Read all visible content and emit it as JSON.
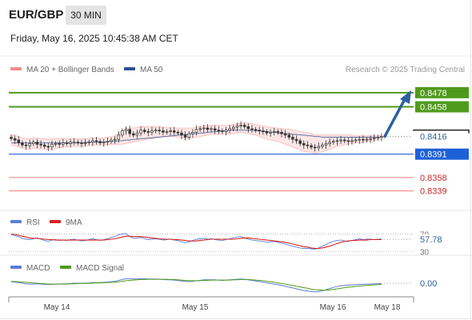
{
  "header": {
    "symbol": "EUR/GBP",
    "timeframe": "30 MIN",
    "datetime": "Friday, May 16, 2025 10:45:38 AM CET"
  },
  "colors": {
    "bollinger": "#f28c8c",
    "ma50": "#2f4f8f",
    "target": "#4f9a1c",
    "pivot": "#1e60d8",
    "support": "#f07a7a",
    "arrow": "#2f5fa0",
    "rsi": "#5b7fd6",
    "rsi_ma": "#d62222",
    "macd": "#5b7fd6",
    "macd_signal": "#4f9a1c",
    "candle_up": "#ffffff",
    "candle_down": "#333333"
  },
  "chart_data": [
    {
      "type": "candlestick",
      "title": "EUR/GBP",
      "legend": [
        {
          "name": "MA 20 + Bollinger Bands",
          "color_key": "bollinger"
        },
        {
          "name": "MA 50",
          "color_key": "ma50"
        }
      ],
      "credit": "Research © 2025 Trading Central",
      "ylim": [
        0.8325,
        0.8488
      ],
      "x_tick_labels": [
        "May 14",
        "May 15",
        "May 16",
        "May 18"
      ],
      "price_now": "0.8416",
      "levels": [
        {
          "value": 0.8478,
          "label": "0.8478",
          "kind": "target",
          "style": "box"
        },
        {
          "value": 0.8458,
          "label": "0.8458",
          "kind": "target",
          "style": "box"
        },
        {
          "value": 0.8391,
          "label": "0.8391",
          "kind": "pivot",
          "style": "box"
        },
        {
          "value": 0.8358,
          "label": "0.8358",
          "kind": "support",
          "style": "text"
        },
        {
          "value": 0.8339,
          "label": "0.8339",
          "kind": "support",
          "style": "text"
        }
      ],
      "arrow": {
        "from": 0.8416,
        "to": 0.8478
      },
      "close": [
        0.8413,
        0.8411,
        0.8407,
        0.8404,
        0.8403,
        0.8406,
        0.8408,
        0.8405,
        0.8404,
        0.8402,
        0.8401,
        0.8405,
        0.8406,
        0.8405,
        0.8407,
        0.8406,
        0.8408,
        0.8408,
        0.8407,
        0.8406,
        0.8407,
        0.8408,
        0.841,
        0.8409,
        0.8407,
        0.8408,
        0.8409,
        0.8411,
        0.8412,
        0.8418,
        0.8424,
        0.8426,
        0.842,
        0.8418,
        0.8421,
        0.8425,
        0.8423,
        0.8422,
        0.8424,
        0.8425,
        0.8424,
        0.8422,
        0.8423,
        0.8424,
        0.8422,
        0.8421,
        0.8418,
        0.8415,
        0.842,
        0.8422,
        0.8426,
        0.8427,
        0.8428,
        0.8426,
        0.8427,
        0.8425,
        0.8424,
        0.8423,
        0.8425,
        0.8427,
        0.8429,
        0.8431,
        0.8432,
        0.843,
        0.8427,
        0.8426,
        0.8425,
        0.8424,
        0.8423,
        0.8421,
        0.8422,
        0.8423,
        0.8422,
        0.842,
        0.8418,
        0.8415,
        0.8412,
        0.841,
        0.8406,
        0.8404,
        0.8403,
        0.8401,
        0.84,
        0.8402,
        0.8404,
        0.8406,
        0.8408,
        0.8409,
        0.841,
        0.8411,
        0.841,
        0.8409,
        0.841,
        0.8411,
        0.8412,
        0.8411,
        0.8412,
        0.8413,
        0.8414,
        0.8415,
        0.8416
      ],
      "upper_band": [
        0.8419,
        0.8418,
        0.8416,
        0.8414,
        0.8413,
        0.8413,
        0.8414,
        0.8414,
        0.8413,
        0.8413,
        0.8412,
        0.8413,
        0.8413,
        0.8413,
        0.8413,
        0.8413,
        0.8413,
        0.8413,
        0.8413,
        0.8413,
        0.8413,
        0.8413,
        0.8414,
        0.8414,
        0.8414,
        0.8414,
        0.8415,
        0.8416,
        0.8417,
        0.842,
        0.8424,
        0.8427,
        0.8428,
        0.8428,
        0.8429,
        0.843,
        0.843,
        0.843,
        0.843,
        0.843,
        0.843,
        0.8429,
        0.8429,
        0.8429,
        0.8428,
        0.8428,
        0.8428,
        0.8428,
        0.8428,
        0.8428,
        0.8429,
        0.843,
        0.8431,
        0.8431,
        0.8432,
        0.8432,
        0.8432,
        0.8432,
        0.8432,
        0.8432,
        0.8433,
        0.8434,
        0.8435,
        0.8435,
        0.8435,
        0.8434,
        0.8433,
        0.8432,
        0.8431,
        0.843,
        0.8429,
        0.8428,
        0.8428,
        0.8427,
        0.8427,
        0.8426,
        0.8425,
        0.8424,
        0.8423,
        0.8422,
        0.8421,
        0.842,
        0.8419,
        0.8418,
        0.8418,
        0.8418,
        0.8418,
        0.8418,
        0.8418,
        0.8418,
        0.8418,
        0.8418,
        0.8418,
        0.8417,
        0.8417,
        0.8417,
        0.8417,
        0.8417,
        0.8417,
        0.8417,
        0.8417
      ],
      "lower_band": [
        0.8404,
        0.8403,
        0.8401,
        0.8399,
        0.8398,
        0.8398,
        0.8399,
        0.8399,
        0.8398,
        0.8398,
        0.8397,
        0.8398,
        0.8399,
        0.84,
        0.8401,
        0.8401,
        0.8401,
        0.8402,
        0.8402,
        0.8402,
        0.8403,
        0.8403,
        0.8404,
        0.8404,
        0.8404,
        0.8404,
        0.8404,
        0.8405,
        0.8405,
        0.8405,
        0.8405,
        0.8406,
        0.8407,
        0.8408,
        0.8409,
        0.841,
        0.8411,
        0.8412,
        0.8413,
        0.8414,
        0.8415,
        0.8415,
        0.8416,
        0.8416,
        0.8416,
        0.8415,
        0.8414,
        0.8413,
        0.8413,
        0.8414,
        0.8415,
        0.8416,
        0.8417,
        0.8418,
        0.8419,
        0.8419,
        0.8419,
        0.8419,
        0.8419,
        0.8419,
        0.842,
        0.8421,
        0.8422,
        0.8421,
        0.842,
        0.8419,
        0.8418,
        0.8416,
        0.8414,
        0.8412,
        0.8411,
        0.841,
        0.8409,
        0.8407,
        0.8405,
        0.8403,
        0.8401,
        0.8399,
        0.8397,
        0.8395,
        0.8394,
        0.8393,
        0.8392,
        0.8393,
        0.8394,
        0.8396,
        0.8398,
        0.84,
        0.8402,
        0.8403,
        0.8404,
        0.8405,
        0.8406,
        0.8407,
        0.8408,
        0.8408,
        0.8409,
        0.841,
        0.841,
        0.8411,
        0.8412
      ],
      "ma50": [
        0.8407,
        0.8407,
        0.8407,
        0.8407,
        0.8407,
        0.8407,
        0.8407,
        0.8407,
        0.8407,
        0.8407,
        0.8407,
        0.8407,
        0.8407,
        0.8407,
        0.8407,
        0.8407,
        0.8407,
        0.8407,
        0.8407,
        0.8407,
        0.8408,
        0.8408,
        0.8408,
        0.8408,
        0.8408,
        0.8408,
        0.8409,
        0.8409,
        0.8409,
        0.841,
        0.841,
        0.8411,
        0.8411,
        0.8412,
        0.8412,
        0.8413,
        0.8413,
        0.8414,
        0.8414,
        0.8415,
        0.8415,
        0.8416,
        0.8416,
        0.8417,
        0.8417,
        0.8418,
        0.8418,
        0.8419,
        0.8419,
        0.842,
        0.842,
        0.8421,
        0.8421,
        0.8422,
        0.8422,
        0.8423,
        0.8423,
        0.8424,
        0.8424,
        0.8425,
        0.8425,
        0.8425,
        0.8425,
        0.8425,
        0.8425,
        0.8425,
        0.8424,
        0.8424,
        0.8423,
        0.8423,
        0.8422,
        0.8422,
        0.8421,
        0.8421,
        0.842,
        0.842,
        0.8419,
        0.8419,
        0.8418,
        0.8418,
        0.8417,
        0.8417,
        0.8416,
        0.8416,
        0.8415,
        0.8415,
        0.8415,
        0.8415,
        0.8415,
        0.8415,
        0.8415,
        0.8415,
        0.8415,
        0.8415,
        0.8415,
        0.8415,
        0.8415,
        0.8415,
        0.8415,
        0.8415,
        0.8415
      ]
    },
    {
      "type": "line",
      "title": "RSI",
      "legend": [
        {
          "name": "RSI",
          "color_key": "rsi"
        },
        {
          "name": "9MA",
          "color_key": "rsi_ma"
        }
      ],
      "ylim": [
        25,
        80
      ],
      "levels": [
        {
          "value": 70,
          "label": "70"
        },
        {
          "value": 30,
          "label": "30"
        }
      ],
      "current_value": "57.78",
      "series": [
        {
          "name": "RSI",
          "values": [
            68,
            66,
            64,
            60,
            58,
            57,
            59,
            61,
            58,
            55,
            53,
            56,
            57,
            55,
            56,
            55,
            57,
            58,
            56,
            54,
            55,
            57,
            59,
            57,
            55,
            57,
            59,
            62,
            64,
            68,
            70,
            71,
            64,
            60,
            61,
            62,
            59,
            57,
            58,
            59,
            58,
            56,
            57,
            58,
            56,
            55,
            52,
            50,
            52,
            55,
            58,
            59,
            60,
            58,
            59,
            57,
            56,
            55,
            57,
            59,
            61,
            63,
            64,
            61,
            58,
            56,
            55,
            54,
            53,
            51,
            52,
            53,
            51,
            49,
            47,
            44,
            42,
            40,
            38,
            37,
            37,
            36,
            35,
            38,
            42,
            46,
            50,
            53,
            55,
            56,
            54,
            53,
            55,
            57,
            59,
            57,
            58,
            58,
            57,
            58,
            58
          ]
        },
        {
          "name": "9MA",
          "values": [
            70,
            69,
            67,
            65,
            63,
            61,
            60,
            60,
            59,
            58,
            57,
            57,
            56,
            56,
            56,
            56,
            56,
            56,
            56,
            56,
            56,
            56,
            56,
            56,
            56,
            56,
            57,
            58,
            59,
            61,
            63,
            65,
            65,
            64,
            64,
            64,
            63,
            62,
            61,
            60,
            59,
            58,
            58,
            58,
            57,
            57,
            56,
            55,
            54,
            54,
            54,
            55,
            56,
            57,
            58,
            58,
            58,
            58,
            58,
            58,
            58,
            59,
            60,
            61,
            61,
            60,
            59,
            58,
            57,
            56,
            55,
            54,
            53,
            52,
            51,
            49,
            47,
            45,
            43,
            41,
            40,
            38,
            37,
            37,
            38,
            40,
            42,
            45,
            48,
            51,
            53,
            54,
            55,
            55,
            56,
            56,
            56,
            57,
            57,
            57,
            57
          ]
        }
      ]
    },
    {
      "type": "line",
      "title": "MACD",
      "legend": [
        {
          "name": "MACD",
          "color_key": "macd"
        },
        {
          "name": "MACD Signal",
          "color_key": "macd_signal"
        }
      ],
      "ylim": [
        -0.0004,
        0.0004
      ],
      "current_value": "0.00",
      "series": [
        {
          "name": "MACD",
          "values": [
            5e-05,
            4e-05,
            2e-05,
            0.0,
            -2e-05,
            -3e-05,
            -3e-05,
            -2e-05,
            -3e-05,
            -4e-05,
            -5e-05,
            -4e-05,
            -3e-05,
            -3e-05,
            -2e-05,
            -2e-05,
            -1e-05,
            0.0,
            0.0,
            0.0,
            0.0,
            1e-05,
            2e-05,
            2e-05,
            2e-05,
            3e-05,
            4e-05,
            5e-05,
            7e-05,
            0.0001,
            0.00013,
            0.00016,
            0.00016,
            0.00015,
            0.00015,
            0.00016,
            0.00016,
            0.00015,
            0.00015,
            0.00015,
            0.00014,
            0.00013,
            0.00012,
            0.00012,
            0.00011,
            0.0001,
            8e-05,
            6e-05,
            6e-05,
            7e-05,
            9e-05,
            0.0001,
            0.00012,
            0.00012,
            0.00012,
            0.00012,
            0.00011,
            0.0001,
            0.00011,
            0.00012,
            0.00013,
            0.00014,
            0.00015,
            0.00014,
            0.00012,
            0.0001,
            8e-05,
            6e-05,
            4e-05,
            1e-05,
            -1e-05,
            -3e-05,
            -5e-05,
            -8e-05,
            -0.00011,
            -0.00014,
            -0.00017,
            -0.0002,
            -0.00023,
            -0.00026,
            -0.00028,
            -0.0003,
            -0.00031,
            -0.0003,
            -0.00027,
            -0.00023,
            -0.00019,
            -0.00015,
            -0.00012,
            -9e-05,
            -8e-05,
            -7e-05,
            -6e-05,
            -5e-05,
            -4e-05,
            -4e-05,
            -3e-05,
            -3e-05,
            -2e-05,
            -2e-05,
            -1e-05
          ]
        },
        {
          "name": "MACD Signal",
          "values": [
            6e-05,
            6e-05,
            5e-05,
            4e-05,
            3e-05,
            2e-05,
            1e-05,
            0.0,
            -1e-05,
            -2e-05,
            -3e-05,
            -3e-05,
            -3e-05,
            -3e-05,
            -3e-05,
            -3e-05,
            -2e-05,
            -2e-05,
            -1e-05,
            -1e-05,
            -1e-05,
            0.0,
            0.0,
            1e-05,
            1e-05,
            2e-05,
            2e-05,
            3e-05,
            4e-05,
            5e-05,
            7e-05,
            9e-05,
            0.0001,
            0.00011,
            0.00012,
            0.00013,
            0.00013,
            0.00014,
            0.00014,
            0.00014,
            0.00014,
            0.00014,
            0.00014,
            0.00013,
            0.00013,
            0.00012,
            0.00011,
            0.0001,
            9e-05,
            9e-05,
            9e-05,
            9e-05,
            0.0001,
            0.0001,
            0.00011,
            0.00011,
            0.00011,
            0.00011,
            0.00011,
            0.00011,
            0.00012,
            0.00012,
            0.00013,
            0.00013,
            0.00013,
            0.00012,
            0.00011,
            0.0001,
            9e-05,
            7e-05,
            5e-05,
            3e-05,
            1e-05,
            -1e-05,
            -3e-05,
            -6e-05,
            -8e-05,
            -0.00011,
            -0.00013,
            -0.00016,
            -0.00018,
            -0.00021,
            -0.00023,
            -0.00024,
            -0.00025,
            -0.00025,
            -0.00024,
            -0.00022,
            -0.0002,
            -0.00018,
            -0.00016,
            -0.00014,
            -0.00013,
            -0.00011,
            -0.0001,
            -9e-05,
            -8e-05,
            -7e-05,
            -6e-05,
            -5e-05,
            -4e-05
          ]
        }
      ]
    }
  ]
}
